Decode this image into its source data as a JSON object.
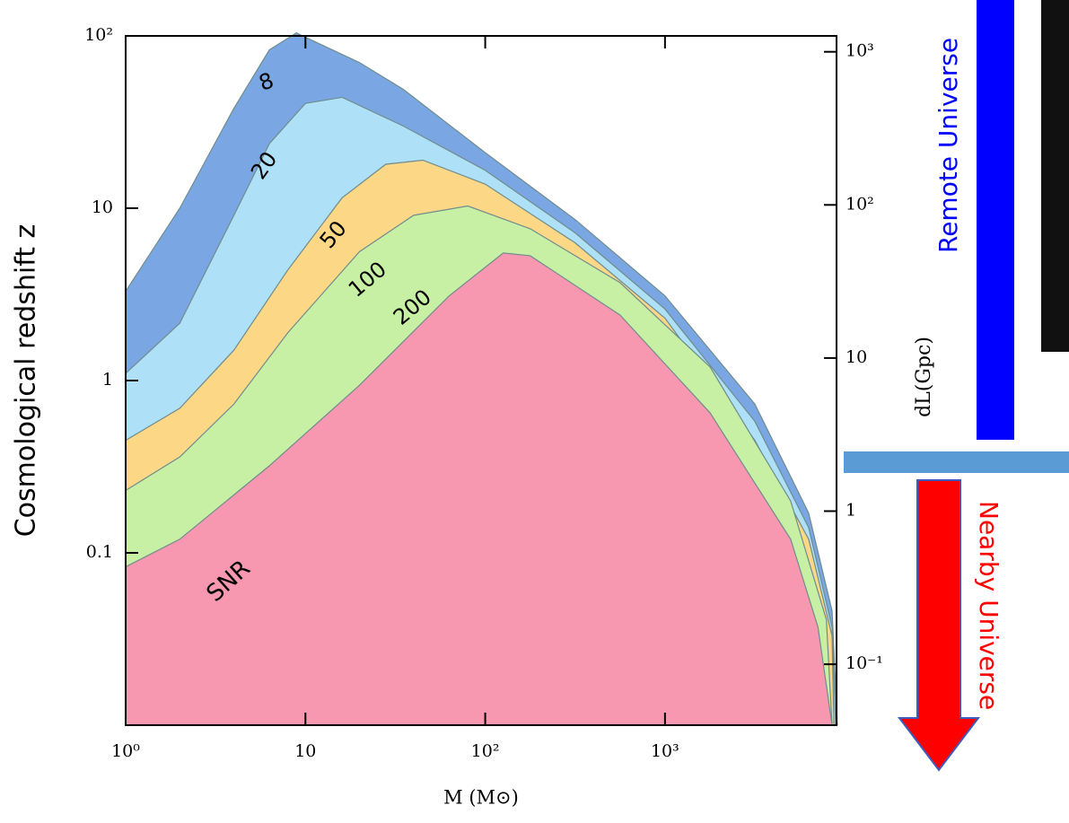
{
  "chart_data": {
    "type": "area",
    "ylabel": "Cosmological redshift z",
    "xlabel": "M (M⊙)",
    "y2label": "dL(Gpc)",
    "annotation": "SNR",
    "xscale": "log",
    "yscale": "log",
    "y2scale": "log",
    "xlim": [
      1,
      9000
    ],
    "ylim": [
      0.01,
      100
    ],
    "y2lim": [
      0.04,
      1270
    ],
    "xticks": [
      {
        "value": 1,
        "label": "10⁰"
      },
      10,
      {
        "value": 100,
        "label": "10²"
      },
      {
        "value": 1000,
        "label": "10³"
      }
    ],
    "yticks": [
      {
        "value": 100,
        "label": "10²"
      },
      10,
      1,
      0.1
    ],
    "y2ticks": [
      {
        "value": 1000,
        "label": "10³"
      },
      {
        "value": 100,
        "label": "10²"
      },
      10,
      1,
      {
        "value": 0.1,
        "label": "10⁻¹"
      }
    ],
    "series": [
      {
        "name": "8",
        "color": "#7aa7e3",
        "x": [
          1,
          2,
          4,
          6.3,
          8.9,
          20,
          35,
          100,
          316,
          1000,
          3160,
          6300,
          8500,
          9100
        ],
        "values": [
          3.3,
          10,
          38,
          83,
          104,
          70,
          49,
          21,
          8.6,
          3.1,
          0.73,
          0.17,
          0.046,
          0.01
        ]
      },
      {
        "name": "20",
        "color": "#aee0f7",
        "x": [
          1,
          2,
          4,
          6.3,
          10,
          16,
          35,
          100,
          316,
          1000,
          3160,
          6300,
          8500,
          8900
        ],
        "values": [
          1.1,
          2.15,
          9.1,
          23.7,
          40.6,
          44,
          30,
          16.6,
          7.2,
          2.6,
          0.58,
          0.14,
          0.037,
          0.01
        ]
      },
      {
        "name": "50",
        "color": "#fcd786",
        "x": [
          1,
          2,
          4,
          8,
          16,
          28,
          45,
          100,
          316,
          1000,
          3160,
          6300,
          8500,
          8700
        ],
        "values": [
          0.45,
          0.69,
          1.5,
          4.4,
          11.5,
          18,
          19,
          13.8,
          6.3,
          2.3,
          0.45,
          0.12,
          0.033,
          0.01
        ]
      },
      {
        "name": "100",
        "color": "#c8f0a4",
        "x": [
          1,
          2,
          4,
          8,
          20,
          40,
          80,
          178,
          562,
          1780,
          5000,
          7900,
          8500
        ],
        "values": [
          0.23,
          0.36,
          0.73,
          1.9,
          5.6,
          9.1,
          10.3,
          7.6,
          3.7,
          1.2,
          0.2,
          0.041,
          0.01
        ]
      },
      {
        "name": "200",
        "color": "#f898b0",
        "x": [
          1,
          2,
          6.3,
          20,
          63,
          126,
          178,
          562,
          1780,
          5000,
          7100,
          8500
        ],
        "values": [
          0.083,
          0.12,
          0.32,
          0.94,
          3.1,
          5.5,
          5.3,
          2.4,
          0.65,
          0.12,
          0.037,
          0.01
        ]
      }
    ]
  },
  "side": {
    "remote": "Remote Universe",
    "nearby": "Nearby Universe"
  }
}
